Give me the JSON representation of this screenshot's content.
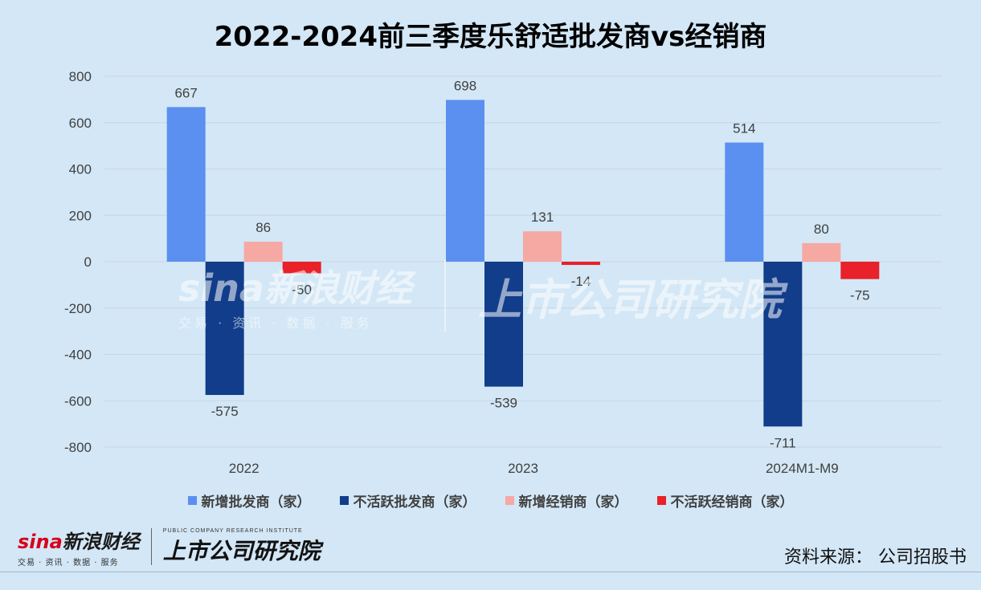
{
  "chart_data": {
    "type": "bar",
    "title": "2022-2024前三季度乐舒适批发商vs经销商",
    "categories": [
      "2022",
      "2023",
      "2024M1-M9"
    ],
    "series": [
      {
        "name": "新增批发商（家）",
        "values": [
          667,
          698,
          514
        ],
        "color": "#5b8ff0"
      },
      {
        "name": "不活跃批发商（家）",
        "values": [
          -575,
          -539,
          -711
        ],
        "color": "#113d8a"
      },
      {
        "name": "新增经销商（家）",
        "values": [
          86,
          131,
          80
        ],
        "color": "#f6a8a3"
      },
      {
        "name": "不活跃经销商（家）",
        "values": [
          -50,
          -14,
          -75
        ],
        "color": "#e8212a"
      }
    ],
    "ylim": [
      -800,
      800
    ],
    "yticks": [
      800,
      600,
      400,
      200,
      0,
      -200,
      -400,
      -600,
      -800
    ],
    "grid": true,
    "legend_position": "bottom"
  },
  "watermark": {
    "brand": "sina新浪财经",
    "sub": "交易 · 资讯 · 数据 · 服务",
    "institute": "上市公司研究院"
  },
  "footer": {
    "logo_brand_red": "sina",
    "logo_brand": "新浪财经",
    "logo_sub": "交易 · 资讯 · 数据 · 服务",
    "institute_en": "PUBLIC COMPANY RESEARCH INSTITUTE",
    "institute_zh": "上市公司研究院",
    "source": "资料来源：  公司招股书"
  }
}
